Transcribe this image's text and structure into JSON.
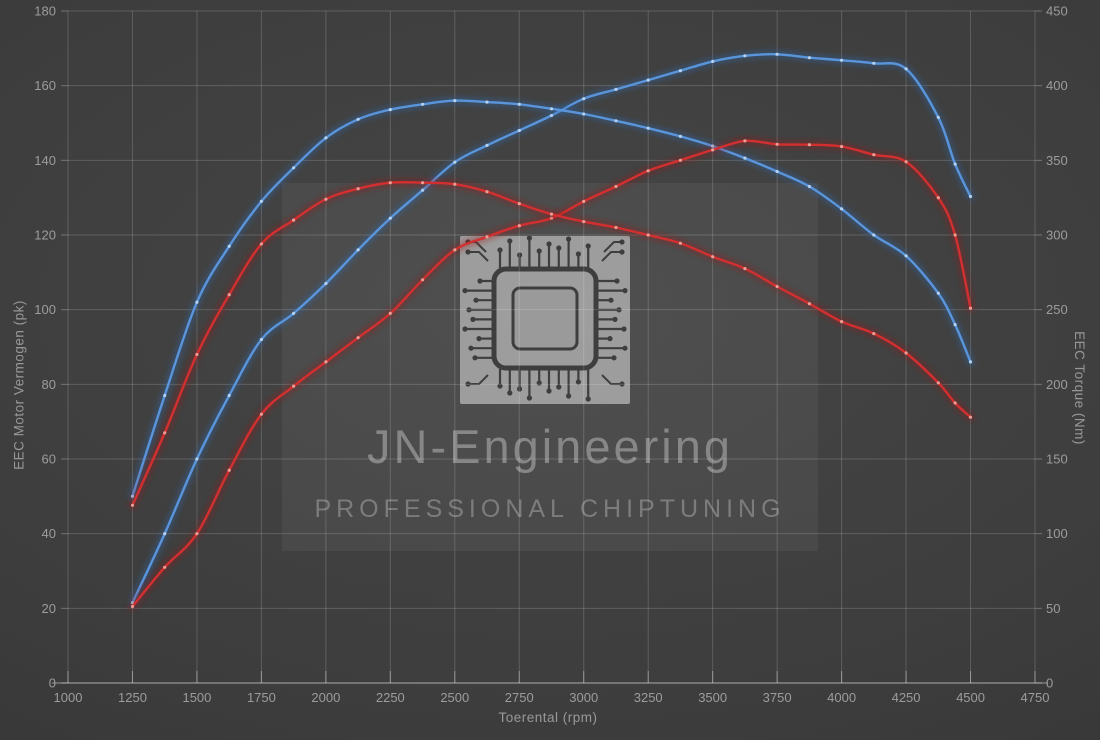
{
  "watermark": {
    "brand": "JN-Engineering",
    "tagline": "PROFESSIONAL CHIPTUNING",
    "icon": "chip-circuit-icon"
  },
  "axes": {
    "x": {
      "label": "Toerental (rpm)",
      "min": 1000,
      "max": 4750,
      "ticks": [
        1000,
        1250,
        1500,
        1750,
        2000,
        2250,
        2500,
        2750,
        3000,
        3250,
        3500,
        3750,
        4000,
        4250,
        4500,
        4750
      ]
    },
    "y_left": {
      "label": "EEC Motor Vermogen (pk)",
      "min": 0,
      "max": 180,
      "ticks": [
        0,
        20,
        40,
        60,
        80,
        100,
        120,
        140,
        160,
        180
      ]
    },
    "y_right": {
      "label": "EEC Torque (Nm)",
      "min": 0,
      "max": 450,
      "ticks": [
        0,
        50,
        100,
        150,
        200,
        250,
        300,
        350,
        400,
        450
      ]
    }
  },
  "chart_data": {
    "type": "line",
    "title": "",
    "xlabel": "Toerental (rpm)",
    "ylabel_left": "EEC Motor Vermogen (pk)",
    "ylabel_right": "EEC Torque (Nm)",
    "x_range": [
      1000,
      4750
    ],
    "y_left_range": [
      0,
      180
    ],
    "y_right_range": [
      0,
      450
    ],
    "grid": true,
    "legend": "none",
    "x": [
      1250,
      1375,
      1500,
      1625,
      1750,
      1875,
      2000,
      2125,
      2250,
      2375,
      2500,
      2625,
      2750,
      2875,
      3000,
      3125,
      3250,
      3375,
      3500,
      3625,
      3750,
      3875,
      4000,
      4125,
      4250,
      4375,
      4440,
      4500
    ],
    "series": [
      {
        "name": "tuned-power",
        "axis": "left",
        "unit": "pk",
        "color": "#5a95dc",
        "glow": "#2e6ab0",
        "dot": "#bcd8f4",
        "values": [
          21.5,
          40,
          60,
          77,
          92,
          99,
          107,
          116,
          124.5,
          132,
          139.5,
          144,
          148,
          152,
          156.5,
          159,
          161.5,
          164,
          166.5,
          168,
          168.4,
          167.5,
          166.8,
          166,
          164.5,
          151.5,
          139,
          130.3
        ]
      },
      {
        "name": "tuned-torque",
        "axis": "right",
        "unit": "Nm",
        "color": "#5a95dc",
        "glow": "#2e6ab0",
        "dot": "#bcd8f4",
        "values": [
          125,
          192.5,
          255,
          292.5,
          322.5,
          345,
          365,
          377.5,
          384,
          387.5,
          390,
          389,
          387.5,
          384.5,
          381,
          376.5,
          371.5,
          366,
          359.5,
          351.5,
          342.5,
          332.5,
          317.5,
          300,
          286,
          261,
          240,
          215
        ]
      },
      {
        "name": "stock-power",
        "axis": "left",
        "unit": "pk",
        "color": "#d23030",
        "glow": "#9c1515",
        "dot": "#f0a8a0",
        "values": [
          20.5,
          31,
          40,
          57,
          72,
          79.5,
          86,
          92.5,
          99,
          108,
          116,
          119.5,
          122.5,
          124.5,
          129,
          133,
          137.2,
          140,
          142.8,
          145.2,
          144.3,
          144.2,
          143.7,
          141.5,
          139.6,
          130,
          120,
          100.4
        ]
      },
      {
        "name": "stock-torque",
        "axis": "right",
        "unit": "Nm",
        "color": "#d23030",
        "glow": "#9c1515",
        "dot": "#f0a8a0",
        "values": [
          119,
          167.5,
          220,
          260,
          294,
          310,
          324,
          331,
          335,
          335,
          334,
          329,
          321,
          314,
          309,
          305,
          300,
          294.5,
          285.5,
          277.5,
          265.5,
          254,
          242,
          234,
          221,
          201,
          187.5,
          178
        ]
      }
    ]
  }
}
